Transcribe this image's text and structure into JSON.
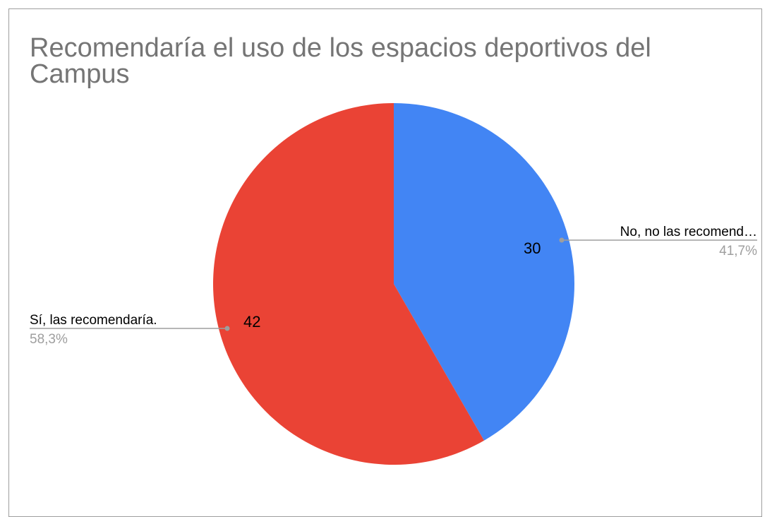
{
  "chart_data": {
    "type": "pie",
    "title": "Recomendaría el uso de los espacios deportivos del Campus",
    "slices": [
      {
        "label": "No, no las recomend…",
        "value": 30,
        "value_label": "30",
        "percent_label": "41,7%",
        "color": "#4285f4"
      },
      {
        "label": "Sí, las recomendaría.",
        "value": 42,
        "value_label": "42",
        "percent_label": "58,3%",
        "color": "#ea4335"
      }
    ],
    "start_angle_deg": 0,
    "direction": "clockwise",
    "legend": "none",
    "label_style": "callout"
  },
  "colors": {
    "title": "#757575",
    "label_text": "#000000",
    "percent_text": "#9e9e9e",
    "leader_line": "#9e9e9e",
    "border": "#9e9e9e"
  }
}
